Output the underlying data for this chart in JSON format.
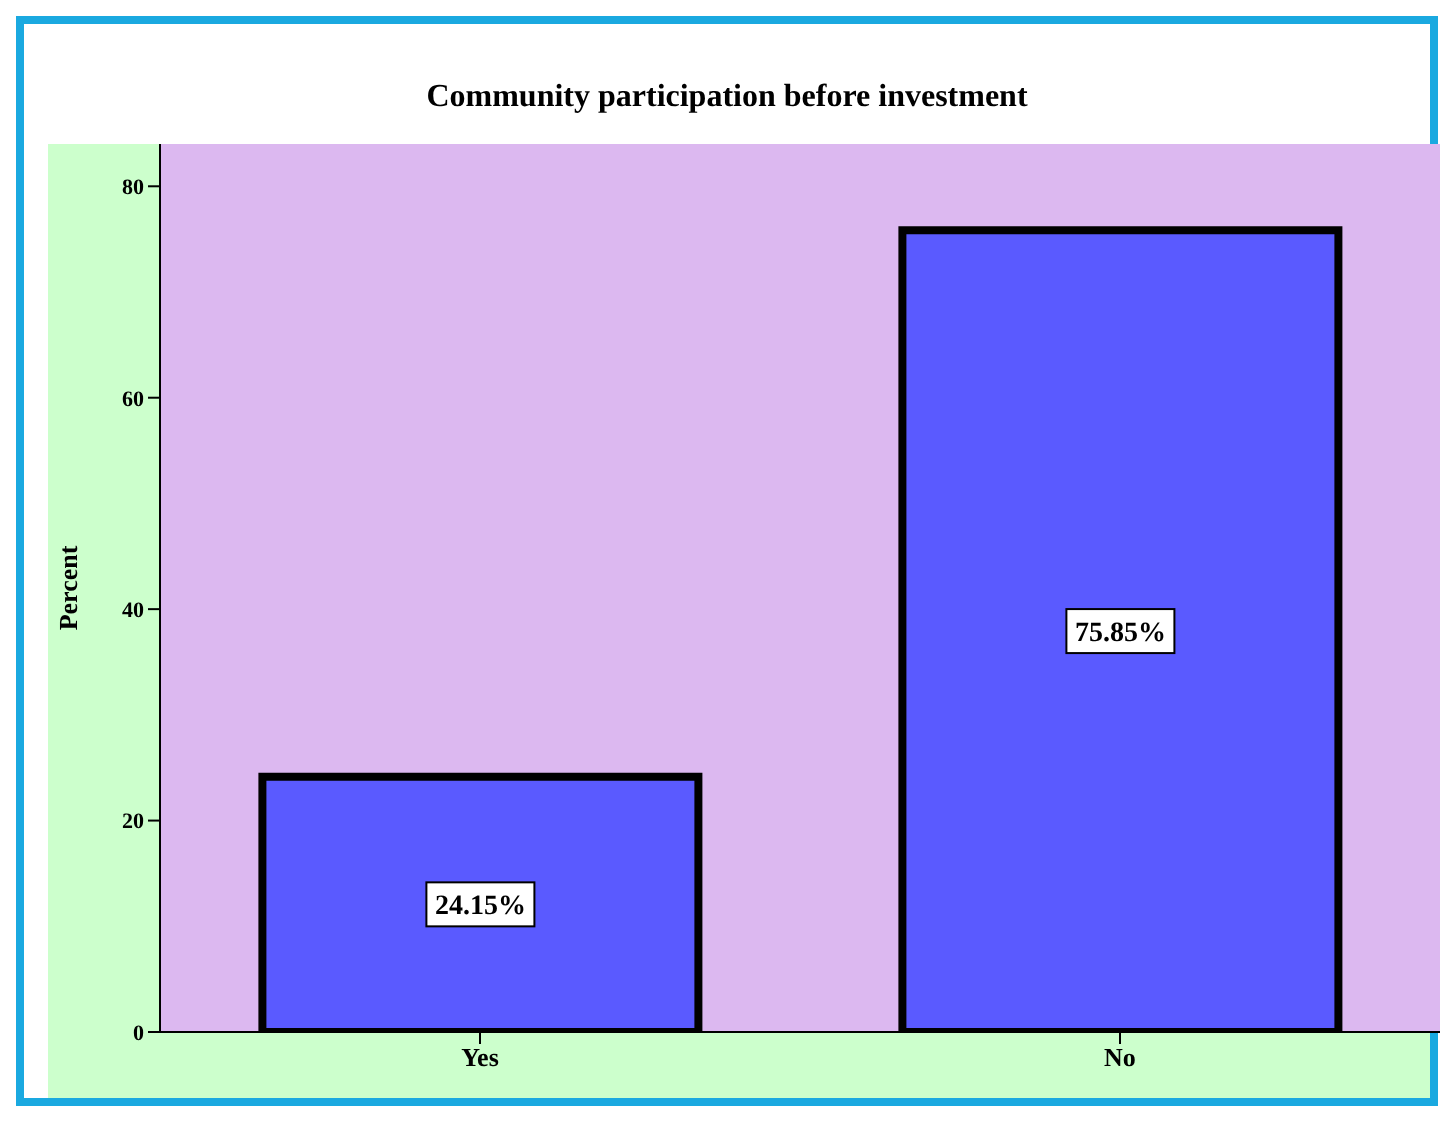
{
  "chart_data": {
    "type": "bar",
    "title": "Community participation before investment",
    "ylabel": "Percent",
    "categories": [
      "Yes",
      "No"
    ],
    "values": [
      24.15,
      75.85
    ],
    "value_labels": [
      "24.15%",
      "75.85%"
    ],
    "color": "#5a5aff",
    "ylim": [
      0,
      84
    ],
    "yticks": [
      0,
      20,
      40,
      60,
      80
    ],
    "grid": false,
    "legend": false
  }
}
